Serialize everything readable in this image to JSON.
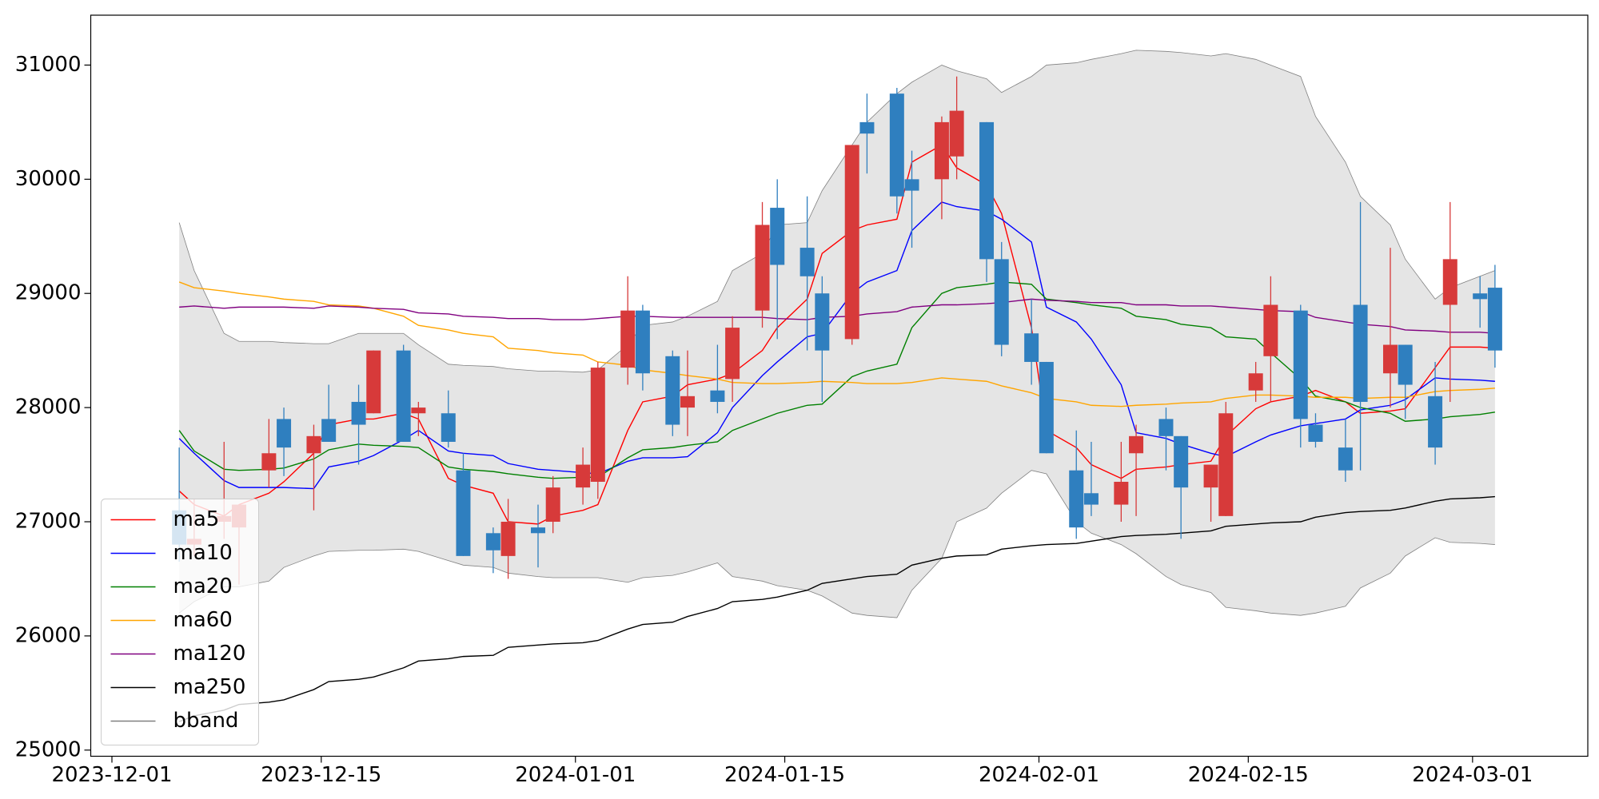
{
  "chart_data": {
    "type": "candlestick",
    "x": [
      "2023-12-05",
      "2023-12-06",
      "2023-12-08",
      "2023-12-09",
      "2023-12-11",
      "2023-12-12",
      "2023-12-14",
      "2023-12-15",
      "2023-12-17",
      "2023-12-18",
      "2023-12-20",
      "2023-12-21",
      "2023-12-23",
      "2023-12-24",
      "2023-12-26",
      "2023-12-27",
      "2023-12-29",
      "2023-12-30",
      "2024-01-01",
      "2024-01-02",
      "2024-01-04",
      "2024-01-05",
      "2024-01-07",
      "2024-01-08",
      "2024-01-10",
      "2024-01-11",
      "2024-01-13",
      "2024-01-14",
      "2024-01-16",
      "2024-01-17",
      "2024-01-19",
      "2024-01-20",
      "2024-01-22",
      "2024-01-23",
      "2024-01-25",
      "2024-01-26",
      "2024-01-28",
      "2024-01-29",
      "2024-01-31",
      "2024-02-01",
      "2024-02-03",
      "2024-02-04",
      "2024-02-06",
      "2024-02-07",
      "2024-02-09",
      "2024-02-10",
      "2024-02-12",
      "2024-02-13",
      "2024-02-15",
      "2024-02-16",
      "2024-02-18",
      "2024-02-19",
      "2024-02-21",
      "2024-02-22",
      "2024-02-24",
      "2024-02-25",
      "2024-02-27",
      "2024-02-28",
      "2024-03-01",
      "2024-03-02"
    ],
    "open": [
      27100,
      26800,
      27000,
      26950,
      27450,
      27900,
      27600,
      27900,
      28050,
      27950,
      28500,
      27950,
      27950,
      27450,
      26900,
      26700,
      26950,
      27000,
      27300,
      27350,
      28350,
      28850,
      28450,
      28000,
      28150,
      28250,
      28850,
      29750,
      29400,
      29000,
      28600,
      30500,
      30750,
      30000,
      30000,
      30200,
      30500,
      29300,
      28650,
      28400,
      27450,
      27250,
      27150,
      27600,
      27900,
      27750,
      27300,
      27050,
      28150,
      28450,
      28850,
      27850,
      27650,
      28900,
      28300,
      28550,
      28100,
      28900,
      29000,
      29050
    ],
    "high": [
      27650,
      27200,
      27700,
      27150,
      27900,
      28000,
      27850,
      28200,
      28200,
      28500,
      28550,
      28050,
      28150,
      27600,
      26950,
      27200,
      27150,
      27400,
      27650,
      28400,
      29150,
      28900,
      28500,
      28500,
      28550,
      28800,
      29800,
      30000,
      29850,
      29150,
      30300,
      30750,
      30800,
      30250,
      30550,
      30900,
      30500,
      29450,
      28950,
      28400,
      27800,
      27700,
      27700,
      27850,
      28000,
      27750,
      27500,
      28050,
      28400,
      29150,
      28900,
      27950,
      27900,
      29800,
      29400,
      28550,
      28400,
      29800,
      29150,
      29250
    ],
    "low": [
      26650,
      26700,
      26850,
      26450,
      27300,
      27400,
      27100,
      27700,
      27500,
      27950,
      27700,
      27750,
      27650,
      26700,
      26550,
      26500,
      26600,
      26900,
      27150,
      27200,
      28200,
      28150,
      27750,
      27750,
      27950,
      28050,
      28700,
      28600,
      28500,
      28050,
      28550,
      30050,
      29700,
      29400,
      29650,
      30000,
      29100,
      28450,
      28200,
      27600,
      26850,
      27050,
      27000,
      27050,
      27450,
      26850,
      27000,
      27050,
      28050,
      28050,
      27650,
      27650,
      27350,
      27450,
      28000,
      27900,
      27500,
      28050,
      28700,
      28350
    ],
    "close": [
      26800,
      26850,
      27050,
      27150,
      27600,
      27650,
      27750,
      27700,
      27850,
      28500,
      27700,
      28000,
      27700,
      26700,
      26750,
      27000,
      26900,
      27300,
      27500,
      28350,
      28850,
      28300,
      27850,
      28100,
      28050,
      28700,
      29600,
      29250,
      29150,
      28500,
      30300,
      30400,
      29850,
      29900,
      30500,
      30600,
      29300,
      28550,
      28400,
      27600,
      26950,
      27150,
      27350,
      27750,
      27750,
      27300,
      27500,
      27950,
      28300,
      28900,
      27900,
      27700,
      27450,
      28050,
      28550,
      28200,
      27650,
      29300,
      28950,
      28500
    ],
    "up_color": "#d73a3a",
    "down_color": "#2f7fbf",
    "lines": [
      {
        "name": "ma5",
        "color": "red",
        "values": [
          27270,
          27150,
          27050,
          27150,
          27250,
          27350,
          27600,
          27850,
          27900,
          27900,
          27950,
          27900,
          27380,
          27320,
          27250,
          27000,
          26980,
          27050,
          27100,
          27150,
          27800,
          28050,
          28100,
          28200,
          28250,
          28300,
          28500,
          28700,
          28950,
          29350,
          29550,
          29600,
          29650,
          30150,
          30300,
          30100,
          29950,
          29700,
          28700,
          27800,
          27650,
          27500,
          27380,
          27460,
          27480,
          27500,
          27530,
          27750,
          27990,
          28050,
          28100,
          28150,
          28050,
          27950,
          27970,
          27990,
          28350,
          28530,
          28530,
          28520
        ]
      },
      {
        "name": "ma10",
        "color": "blue",
        "values": [
          27730,
          27600,
          27360,
          27300,
          27300,
          27300,
          27290,
          27480,
          27530,
          27580,
          27720,
          27800,
          27620,
          27600,
          27580,
          27510,
          27460,
          27450,
          27430,
          27420,
          27530,
          27560,
          27560,
          27570,
          27780,
          28000,
          28280,
          28400,
          28620,
          28650,
          29000,
          29100,
          29200,
          29550,
          29800,
          29760,
          29720,
          29650,
          29450,
          28880,
          28750,
          28600,
          28200,
          27780,
          27730,
          27680,
          27600,
          27570,
          27700,
          27760,
          27840,
          27860,
          27900,
          27980,
          28020,
          28070,
          28260,
          28250,
          28240,
          28230
        ]
      },
      {
        "name": "ma20",
        "color": "green",
        "values": [
          27800,
          27620,
          27460,
          27450,
          27460,
          27470,
          27550,
          27630,
          27680,
          27670,
          27660,
          27650,
          27480,
          27460,
          27440,
          27420,
          27390,
          27380,
          27390,
          27390,
          27560,
          27630,
          27650,
          27670,
          27700,
          27800,
          27900,
          27950,
          28020,
          28030,
          28270,
          28320,
          28380,
          28700,
          29000,
          29050,
          29080,
          29100,
          29080,
          28950,
          28920,
          28900,
          28870,
          28800,
          28770,
          28730,
          28700,
          28620,
          28600,
          28480,
          28250,
          28100,
          28050,
          28000,
          27950,
          27880,
          27900,
          27920,
          27940,
          27960
        ]
      },
      {
        "name": "ma60",
        "color": "orange",
        "values": [
          29100,
          29050,
          29020,
          29000,
          28970,
          28950,
          28930,
          28900,
          28890,
          28870,
          28800,
          28720,
          28680,
          28650,
          28620,
          28520,
          28500,
          28480,
          28460,
          28400,
          28370,
          28330,
          28300,
          28280,
          28250,
          28220,
          28210,
          28210,
          28220,
          28230,
          28220,
          28210,
          28210,
          28220,
          28260,
          28250,
          28230,
          28190,
          28130,
          28080,
          28050,
          28020,
          28010,
          28020,
          28030,
          28040,
          28050,
          28080,
          28110,
          28110,
          28100,
          28090,
          28090,
          28080,
          28090,
          28090,
          28140,
          28150,
          28160,
          28170
        ]
      },
      {
        "name": "ma120",
        "color": "purple",
        "values": [
          28880,
          28890,
          28870,
          28880,
          28880,
          28880,
          28870,
          28890,
          28880,
          28870,
          28860,
          28830,
          28820,
          28800,
          28790,
          28780,
          28780,
          28770,
          28770,
          28780,
          28800,
          28800,
          28790,
          28790,
          28790,
          28790,
          28790,
          28780,
          28770,
          28790,
          28800,
          28820,
          28840,
          28880,
          28900,
          28900,
          28910,
          28920,
          28950,
          28940,
          28930,
          28920,
          28920,
          28900,
          28900,
          28890,
          28890,
          28880,
          28860,
          28850,
          28840,
          28790,
          28750,
          28730,
          28710,
          28680,
          28670,
          28660,
          28660,
          28650
        ]
      },
      {
        "name": "ma250",
        "color": "black",
        "values": [
          25250,
          25300,
          25350,
          25400,
          25420,
          25440,
          25530,
          25600,
          25620,
          25640,
          25720,
          25780,
          25800,
          25820,
          25830,
          25900,
          25920,
          25930,
          25940,
          25960,
          26060,
          26100,
          26120,
          26170,
          26240,
          26300,
          26320,
          26340,
          26400,
          26460,
          26500,
          26520,
          26540,
          26620,
          26680,
          26700,
          26710,
          26760,
          26790,
          26800,
          26810,
          26830,
          26870,
          26880,
          26890,
          26900,
          26920,
          26960,
          26980,
          26990,
          27000,
          27040,
          27080,
          27090,
          27100,
          27120,
          27180,
          27200,
          27210,
          27220
        ]
      }
    ],
    "bband": {
      "name": "bband",
      "color": "gray",
      "fill_color": "#e5e5e5",
      "upper": [
        29620,
        29200,
        28650,
        28580,
        28580,
        28570,
        28560,
        28560,
        28650,
        28650,
        28650,
        28550,
        28380,
        28370,
        28360,
        28340,
        28320,
        28320,
        28310,
        28330,
        28550,
        28720,
        28750,
        28800,
        28930,
        29200,
        29350,
        29600,
        29620,
        29900,
        30300,
        30500,
        30750,
        30850,
        31000,
        30950,
        30880,
        30760,
        30900,
        31000,
        31020,
        31050,
        31100,
        31130,
        31120,
        31110,
        31080,
        31100,
        31050,
        31000,
        30900,
        30550,
        30150,
        29850,
        29600,
        29300,
        28950,
        29050,
        29150,
        29200
      ],
      "lower": [
        26200,
        26300,
        26430,
        26430,
        26480,
        26600,
        26700,
        26740,
        26750,
        26750,
        26760,
        26740,
        26660,
        26620,
        26600,
        26550,
        26520,
        26510,
        26510,
        26510,
        26470,
        26510,
        26530,
        26560,
        26640,
        26520,
        26480,
        26440,
        26400,
        26350,
        26200,
        26180,
        26160,
        26400,
        26680,
        27000,
        27120,
        27250,
        27450,
        27420,
        27000,
        26900,
        26800,
        26720,
        26520,
        26450,
        26380,
        26250,
        26220,
        26200,
        26180,
        26200,
        26260,
        26420,
        26550,
        26700,
        26860,
        26820,
        26810,
        26800
      ]
    },
    "xlim": [
      "2023-11-29T14:00",
      "2024-03-08T17:00"
    ],
    "xticks": [
      "2023-12-01",
      "2023-12-15",
      "2024-01-01",
      "2024-01-15",
      "2024-02-01",
      "2024-02-15",
      "2024-03-01"
    ],
    "ylim": [
      24946,
      31437
    ],
    "yticks": [
      25000,
      26000,
      27000,
      28000,
      29000,
      30000,
      31000
    ],
    "legend": "lower left"
  }
}
